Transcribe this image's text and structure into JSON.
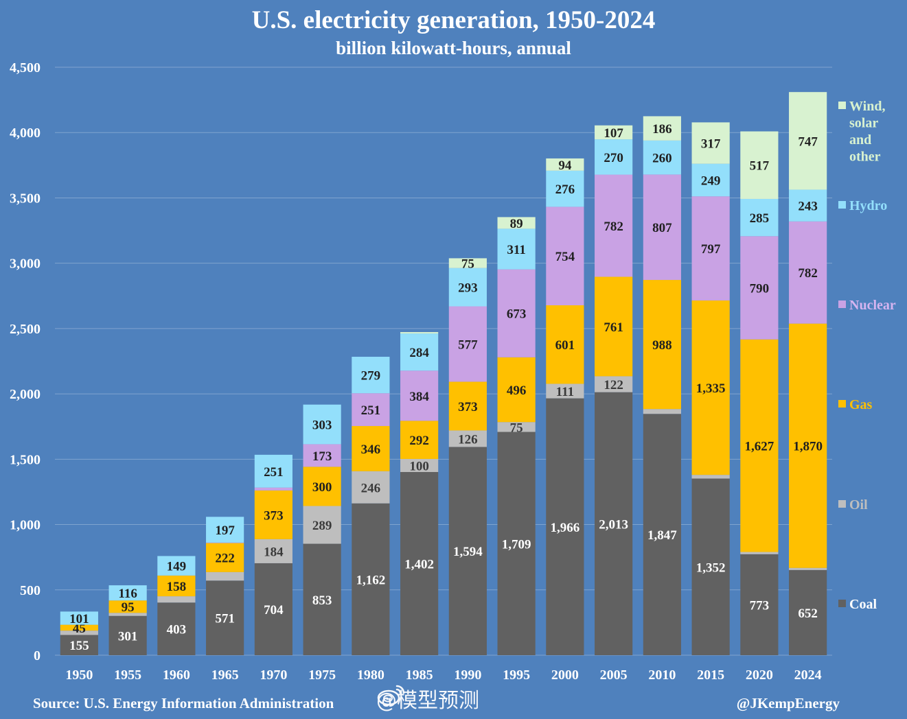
{
  "chart_data": {
    "type": "bar",
    "stacked": true,
    "title": "U.S. electricity generation, 1950-2024",
    "subtitle": "billion kilowatt-hours, annual",
    "xlabel": "",
    "ylabel": "",
    "ylim": [
      0,
      4500
    ],
    "yticks": [
      0,
      500,
      1000,
      1500,
      2000,
      2500,
      3000,
      3500,
      4000,
      4500
    ],
    "ytick_labels": [
      "0",
      "500",
      "1,000",
      "1,500",
      "2,000",
      "2,500",
      "3,000",
      "3,500",
      "4,000",
      "4,500"
    ],
    "grid": true,
    "legend_position": "right",
    "categories": [
      "1950",
      "1955",
      "1960",
      "1965",
      "1970",
      "1975",
      "1980",
      "1985",
      "1990",
      "1995",
      "2000",
      "2005",
      "2010",
      "2015",
      "2020",
      "2024"
    ],
    "series": [
      {
        "name": "Coal",
        "color": "#616161",
        "label_color": "#ffffff",
        "values": [
          155,
          301,
          403,
          571,
          704,
          853,
          1162,
          1402,
          1594,
          1709,
          1966,
          2013,
          1847,
          1352,
          773,
          652
        ],
        "labels": [
          "155",
          "301",
          "403",
          "571",
          "704",
          "853",
          "1,162",
          "1,402",
          "1,594",
          "1,709",
          "1,966",
          "2,013",
          "1,847",
          "1,352",
          "773",
          "652"
        ]
      },
      {
        "name": "Oil",
        "color": "#bebebe",
        "label_color": "#3a3a3a",
        "values": [
          33,
          23,
          48,
          65,
          184,
          289,
          246,
          100,
          126,
          75,
          111,
          122,
          37,
          28,
          17,
          16
        ],
        "labels": [
          "",
          "",
          "",
          "",
          "184",
          "289",
          "246",
          "100",
          "126",
          "75",
          "111",
          "122",
          "",
          "",
          "",
          ""
        ]
      },
      {
        "name": "Gas",
        "color": "#ffc000",
        "label_color": "#202020",
        "values": [
          45,
          95,
          158,
          222,
          373,
          300,
          346,
          292,
          373,
          496,
          601,
          761,
          988,
          1335,
          1627,
          1870
        ],
        "labels": [
          "45",
          "95",
          "158",
          "222",
          "373",
          "300",
          "346",
          "292",
          "373",
          "496",
          "601",
          "761",
          "988",
          "1,335",
          "1,627",
          "1,870"
        ]
      },
      {
        "name": "Nuclear",
        "color": "#c9a2e4",
        "label_color": "#202020",
        "values": [
          0,
          0,
          1,
          4,
          22,
          173,
          251,
          384,
          577,
          673,
          754,
          782,
          807,
          797,
          790,
          782
        ],
        "labels": [
          "",
          "",
          "",
          "",
          "",
          "173",
          "251",
          "384",
          "577",
          "673",
          "754",
          "782",
          "807",
          "797",
          "790",
          "782"
        ]
      },
      {
        "name": "Hydro",
        "color": "#93dffb",
        "label_color": "#202020",
        "values": [
          101,
          116,
          149,
          197,
          251,
          303,
          279,
          284,
          293,
          311,
          276,
          270,
          260,
          249,
          285,
          243
        ],
        "labels": [
          "101",
          "116",
          "149",
          "197",
          "251",
          "303",
          "279",
          "284",
          "293",
          "311",
          "276",
          "270",
          "260",
          "249",
          "285",
          "243"
        ]
      },
      {
        "name": "Wind, solar and other",
        "color": "#d8f2d0",
        "label_color": "#202020",
        "values": [
          0,
          0,
          0,
          0,
          0,
          0,
          0,
          11,
          75,
          89,
          94,
          107,
          186,
          317,
          517,
          747
        ],
        "labels": [
          "",
          "",
          "",
          "",
          "",
          "",
          "",
          "",
          "75",
          "89",
          "94",
          "107",
          "186",
          "317",
          "517",
          "747"
        ]
      }
    ],
    "legend": [
      {
        "lines": [
          "Wind,",
          "solar",
          "and",
          "other"
        ],
        "color": "#d8f2d0",
        "text_color": "#d8f2d0"
      },
      {
        "lines": [
          "Hydro"
        ],
        "color": "#93dffb",
        "text_color": "#93dffb"
      },
      {
        "lines": [
          "Nuclear"
        ],
        "color": "#c9a2e4",
        "text_color": "#d6b4f0"
      },
      {
        "lines": [
          "Gas"
        ],
        "color": "#ffc000",
        "text_color": "#ffc000"
      },
      {
        "lines": [
          "Oil"
        ],
        "color": "#bebebe",
        "text_color": "#bebebe"
      },
      {
        "lines": [
          "Coal"
        ],
        "color": "#616161",
        "text_color": "#ffffff"
      }
    ]
  },
  "footer": {
    "source": "Source: U.S. Energy Information Administration",
    "credit": "@JKempEnergy",
    "watermark": "@模型预测"
  }
}
